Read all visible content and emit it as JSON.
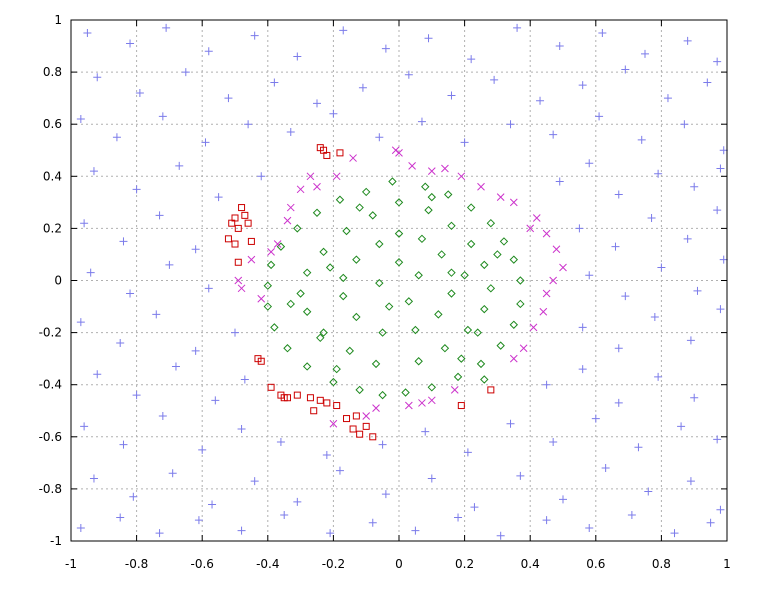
{
  "chart_data": {
    "type": "scatter",
    "title": "",
    "xlabel": "",
    "ylabel": "",
    "xlim": [
      -1,
      1
    ],
    "ylim": [
      -1,
      1
    ],
    "grid": true,
    "legend": "none",
    "xticks": [
      "-1",
      "-0.8",
      "-0.6",
      "-0.4",
      "-0.2",
      "0",
      "0.2",
      "0.4",
      "0.6",
      "0.8",
      "1"
    ],
    "yticks": [
      "1",
      "0.8",
      "0.6",
      "0.4",
      "0.2",
      "0",
      "-0.2",
      "-0.4",
      "-0.6",
      "-0.8",
      "-1"
    ],
    "colors": {
      "plus": "#7b7bea",
      "diamond": "#1f8a1f",
      "cross": "#cc33cc",
      "square": "#cc0000"
    },
    "series": [
      {
        "marker": "plus",
        "color": "#7b7bea",
        "points": [
          [
            -0.95,
            0.95
          ],
          [
            -0.82,
            0.91
          ],
          [
            -0.71,
            0.97
          ],
          [
            -0.58,
            0.88
          ],
          [
            -0.44,
            0.94
          ],
          [
            -0.31,
            0.86
          ],
          [
            -0.17,
            0.96
          ],
          [
            -0.04,
            0.89
          ],
          [
            0.09,
            0.93
          ],
          [
            0.22,
            0.85
          ],
          [
            0.36,
            0.97
          ],
          [
            0.49,
            0.9
          ],
          [
            0.62,
            0.95
          ],
          [
            0.75,
            0.87
          ],
          [
            0.88,
            0.92
          ],
          [
            0.97,
            0.84
          ],
          [
            -0.92,
            0.78
          ],
          [
            -0.79,
            0.72
          ],
          [
            -0.65,
            0.8
          ],
          [
            -0.52,
            0.7
          ],
          [
            -0.38,
            0.76
          ],
          [
            -0.25,
            0.68
          ],
          [
            -0.11,
            0.74
          ],
          [
            0.03,
            0.79
          ],
          [
            0.16,
            0.71
          ],
          [
            0.29,
            0.77
          ],
          [
            0.43,
            0.69
          ],
          [
            0.56,
            0.75
          ],
          [
            0.69,
            0.81
          ],
          [
            0.82,
            0.7
          ],
          [
            0.94,
            0.76
          ],
          [
            -0.97,
            0.62
          ],
          [
            -0.86,
            0.55
          ],
          [
            -0.72,
            0.63
          ],
          [
            -0.59,
            0.53
          ],
          [
            -0.46,
            0.6
          ],
          [
            -0.33,
            0.57
          ],
          [
            -0.2,
            0.64
          ],
          [
            -0.06,
            0.55
          ],
          [
            0.07,
            0.61
          ],
          [
            0.2,
            0.53
          ],
          [
            0.34,
            0.6
          ],
          [
            0.47,
            0.56
          ],
          [
            0.61,
            0.63
          ],
          [
            0.74,
            0.54
          ],
          [
            0.87,
            0.6
          ],
          [
            0.99,
            0.5
          ],
          [
            -0.93,
            0.42
          ],
          [
            -0.8,
            0.35
          ],
          [
            -0.67,
            0.44
          ],
          [
            -0.55,
            0.32
          ],
          [
            -0.42,
            0.4
          ],
          [
            0.49,
            0.38
          ],
          [
            0.58,
            0.45
          ],
          [
            0.67,
            0.33
          ],
          [
            0.79,
            0.41
          ],
          [
            0.9,
            0.36
          ],
          [
            0.98,
            0.43
          ],
          [
            -0.96,
            0.22
          ],
          [
            -0.84,
            0.15
          ],
          [
            -0.73,
            0.25
          ],
          [
            -0.62,
            0.12
          ],
          [
            0.55,
            0.2
          ],
          [
            0.66,
            0.13
          ],
          [
            0.77,
            0.24
          ],
          [
            0.88,
            0.16
          ],
          [
            0.97,
            0.27
          ],
          [
            -0.94,
            0.03
          ],
          [
            -0.82,
            -0.05
          ],
          [
            -0.7,
            0.06
          ],
          [
            -0.58,
            -0.03
          ],
          [
            0.58,
            0.02
          ],
          [
            0.69,
            -0.06
          ],
          [
            0.8,
            0.05
          ],
          [
            0.91,
            -0.04
          ],
          [
            0.99,
            0.08
          ],
          [
            -0.97,
            -0.16
          ],
          [
            -0.85,
            -0.24
          ],
          [
            -0.74,
            -0.13
          ],
          [
            -0.62,
            -0.27
          ],
          [
            -0.5,
            -0.2
          ],
          [
            0.56,
            -0.18
          ],
          [
            0.67,
            -0.26
          ],
          [
            0.78,
            -0.14
          ],
          [
            0.89,
            -0.23
          ],
          [
            0.98,
            -0.11
          ],
          [
            -0.92,
            -0.36
          ],
          [
            -0.8,
            -0.44
          ],
          [
            -0.68,
            -0.33
          ],
          [
            -0.56,
            -0.46
          ],
          [
            -0.47,
            -0.38
          ],
          [
            0.45,
            -0.4
          ],
          [
            0.56,
            -0.34
          ],
          [
            0.67,
            -0.47
          ],
          [
            0.79,
            -0.37
          ],
          [
            0.9,
            -0.45
          ],
          [
            -0.96,
            -0.56
          ],
          [
            -0.84,
            -0.63
          ],
          [
            -0.72,
            -0.52
          ],
          [
            -0.6,
            -0.65
          ],
          [
            -0.48,
            -0.57
          ],
          [
            -0.36,
            -0.62
          ],
          [
            -0.22,
            -0.67
          ],
          [
            -0.05,
            -0.63
          ],
          [
            0.08,
            -0.58
          ],
          [
            0.21,
            -0.66
          ],
          [
            0.34,
            -0.55
          ],
          [
            0.47,
            -0.62
          ],
          [
            0.6,
            -0.53
          ],
          [
            0.73,
            -0.64
          ],
          [
            0.86,
            -0.56
          ],
          [
            0.97,
            -0.61
          ],
          [
            -0.93,
            -0.76
          ],
          [
            -0.81,
            -0.83
          ],
          [
            -0.69,
            -0.74
          ],
          [
            -0.57,
            -0.86
          ],
          [
            -0.44,
            -0.77
          ],
          [
            -0.31,
            -0.85
          ],
          [
            -0.18,
            -0.73
          ],
          [
            -0.04,
            -0.82
          ],
          [
            0.1,
            -0.76
          ],
          [
            0.23,
            -0.87
          ],
          [
            0.37,
            -0.75
          ],
          [
            0.5,
            -0.84
          ],
          [
            0.63,
            -0.72
          ],
          [
            0.76,
            -0.81
          ],
          [
            0.89,
            -0.77
          ],
          [
            0.98,
            -0.88
          ],
          [
            -0.97,
            -0.95
          ],
          [
            -0.85,
            -0.91
          ],
          [
            -0.73,
            -0.97
          ],
          [
            -0.61,
            -0.92
          ],
          [
            -0.48,
            -0.96
          ],
          [
            -0.35,
            -0.9
          ],
          [
            -0.21,
            -0.97
          ],
          [
            -0.08,
            -0.93
          ],
          [
            0.05,
            -0.96
          ],
          [
            0.18,
            -0.91
          ],
          [
            0.31,
            -0.98
          ],
          [
            0.45,
            -0.92
          ],
          [
            0.58,
            -0.95
          ],
          [
            0.71,
            -0.9
          ],
          [
            0.84,
            -0.97
          ],
          [
            0.95,
            -0.93
          ]
        ]
      },
      {
        "marker": "diamond",
        "color": "#1f8a1f",
        "points": [
          [
            -0.02,
            0.38
          ],
          [
            0.08,
            0.36
          ],
          [
            0.15,
            0.33
          ],
          [
            -0.1,
            0.34
          ],
          [
            -0.18,
            0.31
          ],
          [
            0.22,
            0.28
          ],
          [
            -0.25,
            0.26
          ],
          [
            0.28,
            0.22
          ],
          [
            -0.31,
            0.2
          ],
          [
            0.32,
            0.15
          ],
          [
            -0.36,
            0.13
          ],
          [
            0.35,
            0.08
          ],
          [
            -0.39,
            0.06
          ],
          [
            0.37,
            0.0
          ],
          [
            -0.4,
            -0.02
          ],
          [
            0.37,
            -0.09
          ],
          [
            -0.4,
            -0.1
          ],
          [
            0.35,
            -0.17
          ],
          [
            -0.38,
            -0.18
          ],
          [
            0.31,
            -0.25
          ],
          [
            -0.34,
            -0.26
          ],
          [
            0.25,
            -0.32
          ],
          [
            -0.28,
            -0.33
          ],
          [
            0.18,
            -0.37
          ],
          [
            -0.2,
            -0.39
          ],
          [
            0.1,
            -0.41
          ],
          [
            -0.12,
            -0.42
          ],
          [
            0.02,
            -0.43
          ],
          [
            -0.05,
            -0.44
          ],
          [
            0.26,
            -0.38
          ],
          [
            0.0,
            0.3
          ],
          [
            0.09,
            0.27
          ],
          [
            -0.08,
            0.25
          ],
          [
            0.16,
            0.21
          ],
          [
            -0.16,
            0.19
          ],
          [
            0.22,
            0.14
          ],
          [
            -0.23,
            0.11
          ],
          [
            0.26,
            0.06
          ],
          [
            -0.28,
            0.03
          ],
          [
            0.28,
            -0.03
          ],
          [
            -0.3,
            -0.05
          ],
          [
            0.26,
            -0.11
          ],
          [
            -0.28,
            -0.12
          ],
          [
            0.21,
            -0.19
          ],
          [
            -0.23,
            -0.2
          ],
          [
            0.14,
            -0.26
          ],
          [
            -0.15,
            -0.27
          ],
          [
            0.06,
            -0.31
          ],
          [
            -0.07,
            -0.32
          ],
          [
            0.0,
            0.18
          ],
          [
            0.07,
            0.16
          ],
          [
            -0.06,
            0.14
          ],
          [
            0.13,
            0.1
          ],
          [
            -0.13,
            0.08
          ],
          [
            0.16,
            0.03
          ],
          [
            -0.17,
            0.01
          ],
          [
            0.16,
            -0.05
          ],
          [
            -0.17,
            -0.06
          ],
          [
            0.12,
            -0.13
          ],
          [
            -0.13,
            -0.14
          ],
          [
            0.05,
            -0.19
          ],
          [
            -0.05,
            -0.2
          ],
          [
            0.0,
            0.07
          ],
          [
            0.06,
            0.02
          ],
          [
            -0.06,
            -0.01
          ],
          [
            0.03,
            -0.08
          ],
          [
            -0.03,
            -0.1
          ],
          [
            0.2,
            0.02
          ],
          [
            -0.21,
            0.05
          ],
          [
            0.24,
            -0.2
          ],
          [
            -0.24,
            -0.22
          ],
          [
            0.1,
            0.32
          ],
          [
            -0.12,
            0.28
          ],
          [
            0.19,
            -0.3
          ],
          [
            -0.19,
            -0.34
          ],
          [
            0.3,
            0.1
          ],
          [
            -0.33,
            -0.09
          ]
        ]
      },
      {
        "marker": "cross",
        "color": "#cc33cc",
        "points": [
          [
            -0.01,
            0.5
          ],
          [
            0.0,
            0.49
          ],
          [
            0.04,
            0.44
          ],
          [
            0.1,
            0.42
          ],
          [
            0.14,
            0.43
          ],
          [
            0.19,
            0.4
          ],
          [
            0.25,
            0.36
          ],
          [
            0.31,
            0.32
          ],
          [
            0.35,
            0.3
          ],
          [
            0.4,
            0.2
          ],
          [
            0.42,
            0.24
          ],
          [
            0.45,
            0.18
          ],
          [
            0.48,
            0.12
          ],
          [
            0.5,
            0.05
          ],
          [
            0.47,
            0.0
          ],
          [
            0.45,
            -0.05
          ],
          [
            0.44,
            -0.12
          ],
          [
            0.41,
            -0.18
          ],
          [
            0.38,
            -0.26
          ],
          [
            0.35,
            -0.3
          ],
          [
            0.17,
            -0.42
          ],
          [
            0.1,
            -0.46
          ],
          [
            0.07,
            -0.47
          ],
          [
            0.03,
            -0.48
          ],
          [
            -0.07,
            -0.49
          ],
          [
            -0.1,
            -0.52
          ],
          [
            -0.2,
            -0.55
          ],
          [
            -0.49,
            0.0
          ],
          [
            -0.48,
            -0.03
          ],
          [
            -0.42,
            -0.07
          ],
          [
            -0.45,
            0.08
          ],
          [
            -0.39,
            0.11
          ],
          [
            -0.37,
            0.14
          ],
          [
            -0.34,
            0.23
          ],
          [
            -0.33,
            0.28
          ],
          [
            -0.3,
            0.35
          ],
          [
            -0.27,
            0.4
          ],
          [
            -0.19,
            0.4
          ],
          [
            -0.14,
            0.47
          ],
          [
            -0.25,
            0.36
          ]
        ]
      },
      {
        "marker": "square",
        "color": "#cc0000",
        "points": [
          [
            -0.24,
            0.51
          ],
          [
            -0.22,
            0.48
          ],
          [
            -0.23,
            0.5
          ],
          [
            -0.18,
            0.49
          ],
          [
            -0.5,
            0.24
          ],
          [
            -0.51,
            0.22
          ],
          [
            -0.48,
            0.28
          ],
          [
            -0.47,
            0.25
          ],
          [
            -0.49,
            0.2
          ],
          [
            -0.46,
            0.22
          ],
          [
            -0.52,
            0.16
          ],
          [
            -0.5,
            0.14
          ],
          [
            -0.49,
            0.07
          ],
          [
            -0.45,
            0.15
          ],
          [
            -0.43,
            -0.3
          ],
          [
            -0.42,
            -0.31
          ],
          [
            -0.39,
            -0.41
          ],
          [
            -0.36,
            -0.44
          ],
          [
            -0.34,
            -0.45
          ],
          [
            -0.31,
            -0.44
          ],
          [
            -0.27,
            -0.45
          ],
          [
            -0.26,
            -0.5
          ],
          [
            -0.22,
            -0.47
          ],
          [
            -0.19,
            -0.48
          ],
          [
            -0.16,
            -0.53
          ],
          [
            -0.14,
            -0.57
          ],
          [
            -0.12,
            -0.59
          ],
          [
            -0.1,
            -0.56
          ],
          [
            -0.08,
            -0.6
          ],
          [
            -0.13,
            -0.52
          ],
          [
            0.19,
            -0.48
          ],
          [
            0.28,
            -0.42
          ],
          [
            -0.35,
            -0.45
          ],
          [
            -0.24,
            -0.46
          ]
        ]
      }
    ]
  }
}
